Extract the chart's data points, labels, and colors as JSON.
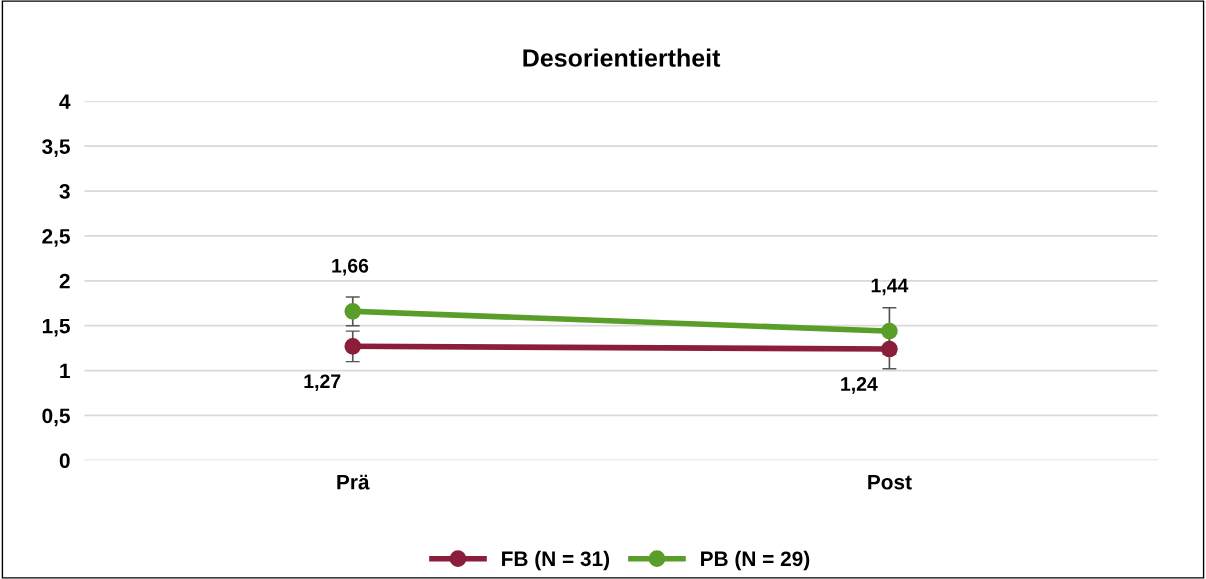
{
  "chart_data": {
    "type": "line",
    "title": "Desorientiertheit",
    "categories": [
      "Prä",
      "Post"
    ],
    "series": [
      {
        "name": "FB (N = 31)",
        "color": "#8b1e3a",
        "values": [
          1.27,
          1.24
        ],
        "errors": [
          0.17,
          0.22
        ],
        "value_labels": [
          "1,27",
          "1,24"
        ]
      },
      {
        "name": "PB (N = 29)",
        "color": "#5a9e2a",
        "values": [
          1.66,
          1.44
        ],
        "errors": [
          0.16,
          0.26
        ],
        "value_labels": [
          "1,66",
          "1,44"
        ]
      }
    ],
    "ylim": [
      0,
      4
    ],
    "yticks": [
      0,
      {
        "value": 0.5,
        "label": "0,5"
      },
      1,
      {
        "value": 1.5,
        "label": "1,5"
      },
      2,
      {
        "value": 2.5,
        "label": "2,5"
      },
      3,
      {
        "value": 3.5,
        "label": "3,5"
      },
      4
    ],
    "grid": "y",
    "legend": "bottom",
    "marker": "circle",
    "line_style": "solid"
  }
}
